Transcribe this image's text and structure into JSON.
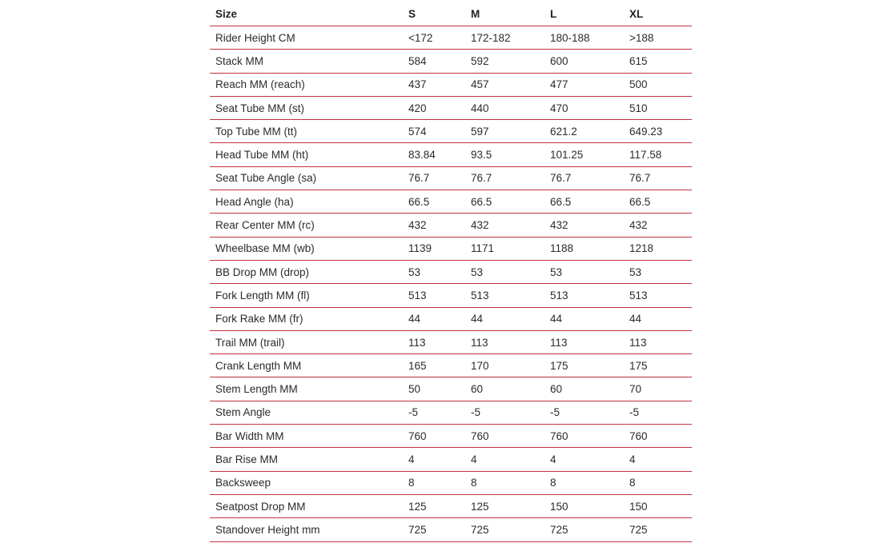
{
  "table": {
    "header": [
      "Size",
      "S",
      "M",
      "L",
      "XL"
    ],
    "rows": [
      [
        "Rider Height CM",
        "<172",
        "172-182",
        "180-188",
        ">188"
      ],
      [
        "Stack MM",
        "584",
        "592",
        "600",
        "615"
      ],
      [
        "Reach MM (reach)",
        "437",
        "457",
        "477",
        "500"
      ],
      [
        "Seat Tube MM (st)",
        "420",
        "440",
        "470",
        "510"
      ],
      [
        "Top Tube MM (tt)",
        "574",
        "597",
        "621.2",
        "649.23"
      ],
      [
        "Head Tube MM (ht)",
        "83.84",
        "93.5",
        "101.25",
        "117.58"
      ],
      [
        "Seat Tube Angle (sa)",
        "76.7",
        "76.7",
        "76.7",
        "76.7"
      ],
      [
        "Head Angle (ha)",
        "66.5",
        "66.5",
        "66.5",
        "66.5"
      ],
      [
        "Rear Center MM (rc)",
        "432",
        "432",
        "432",
        "432"
      ],
      [
        "Wheelbase MM (wb)",
        "1139",
        "1171",
        "1188",
        "1218"
      ],
      [
        "BB Drop MM (drop)",
        "53",
        "53",
        "53",
        "53"
      ],
      [
        "Fork Length MM (fl)",
        "513",
        "513",
        "513",
        "513"
      ],
      [
        "Fork Rake MM (fr)",
        "44",
        "44",
        "44",
        "44"
      ],
      [
        "Trail MM (trail)",
        "113",
        "113",
        "113",
        "113"
      ],
      [
        "Crank Length MM",
        "165",
        "170",
        "175",
        "175"
      ],
      [
        "Stem Length MM",
        "50",
        "60",
        "60",
        "70"
      ],
      [
        "Stem Angle",
        "-5",
        "-5",
        "-5",
        "-5"
      ],
      [
        "Bar Width MM",
        "760",
        "760",
        "760",
        "760"
      ],
      [
        "Bar Rise MM",
        "4",
        "4",
        "4",
        "4"
      ],
      [
        "Backsweep",
        "8",
        "8",
        "8",
        "8"
      ],
      [
        "Seatpost Drop MM",
        "125",
        "125",
        "150",
        "150"
      ],
      [
        "Standover Height mm",
        "725",
        "725",
        "725",
        "725"
      ]
    ]
  }
}
